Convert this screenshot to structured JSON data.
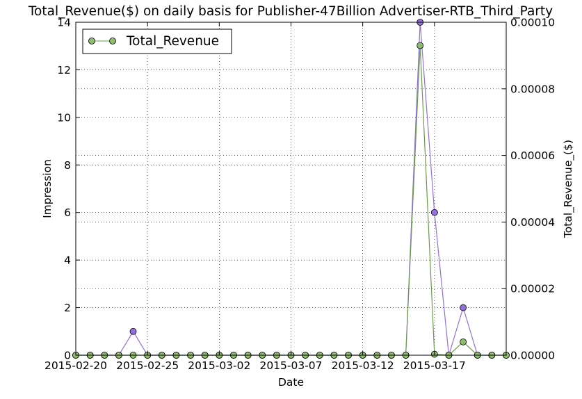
{
  "chart_data": {
    "type": "line",
    "title": "Total_Revenue($) on daily basis for Publisher-47Billion Advertiser-RTB_Third_Party",
    "xlabel": "Date",
    "ylabel_left": "Impression",
    "ylabel_right": "Total_Revenue_($)",
    "x_start": "2015-02-20",
    "x_end": "2015-03-22",
    "x_ticks": [
      "2015-02-20",
      "2015-02-25",
      "2015-03-02",
      "2015-03-07",
      "2015-03-12",
      "2015-03-17"
    ],
    "ylim_left": [
      0,
      14
    ],
    "yticks_left": [
      "0",
      "2",
      "4",
      "6",
      "8",
      "10",
      "12",
      "14"
    ],
    "ylim_right": [
      0,
      0.0001
    ],
    "yticks_right": [
      "0.00000",
      "0.00002",
      "0.00004",
      "0.00006",
      "0.00008",
      "0.00010"
    ],
    "grid": true,
    "legend_position": "top-left",
    "legend_label": "Total_Revenue",
    "dates": [
      "2015-02-20",
      "2015-02-21",
      "2015-02-22",
      "2015-02-23",
      "2015-02-24",
      "2015-02-25",
      "2015-02-26",
      "2015-02-27",
      "2015-02-28",
      "2015-03-01",
      "2015-03-02",
      "2015-03-03",
      "2015-03-04",
      "2015-03-05",
      "2015-03-06",
      "2015-03-07",
      "2015-03-08",
      "2015-03-09",
      "2015-03-10",
      "2015-03-11",
      "2015-03-12",
      "2015-03-13",
      "2015-03-14",
      "2015-03-15",
      "2015-03-16",
      "2015-03-17",
      "2015-03-18",
      "2015-03-19",
      "2015-03-20",
      "2015-03-21",
      "2015-03-22"
    ],
    "series": [
      {
        "axis": "left",
        "color": "#9370DB",
        "values": [
          0,
          0,
          0,
          0,
          1,
          0,
          0,
          0,
          0,
          0,
          0,
          0,
          0,
          0,
          0,
          0,
          0,
          0,
          0,
          0,
          0,
          0,
          0,
          0,
          14,
          6,
          0,
          2,
          0,
          0,
          0
        ]
      },
      {
        "name": "Total_Revenue",
        "axis": "right",
        "color": "#6a9a4c",
        "marker_color": "#8fbc6f",
        "values": [
          0,
          0,
          0,
          0,
          0,
          0,
          0,
          0,
          0,
          0,
          0,
          0,
          0,
          0,
          0,
          0,
          0,
          0,
          0,
          0,
          0,
          0,
          0,
          0,
          9.3e-05,
          3e-07,
          0,
          4e-06,
          0,
          0,
          0
        ]
      }
    ]
  }
}
